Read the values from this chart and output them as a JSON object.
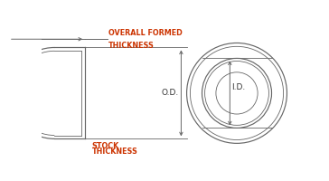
{
  "bg_color": "#ffffff",
  "line_color": "#666666",
  "text_black": "#333333",
  "text_red": "#cc3300",
  "label_od": "O.D.",
  "label_id": "I.D.",
  "label_overall_1": "OVERALL FORMED",
  "label_overall_2": "THICKNESS",
  "label_stock_1": "STOCK",
  "label_stock_2": "THICKNESS",
  "fs_label": 5.8,
  "fs_dim": 6.5,
  "lw_main": 0.85,
  "lw_thin": 0.6,
  "lw_dim": 0.7
}
